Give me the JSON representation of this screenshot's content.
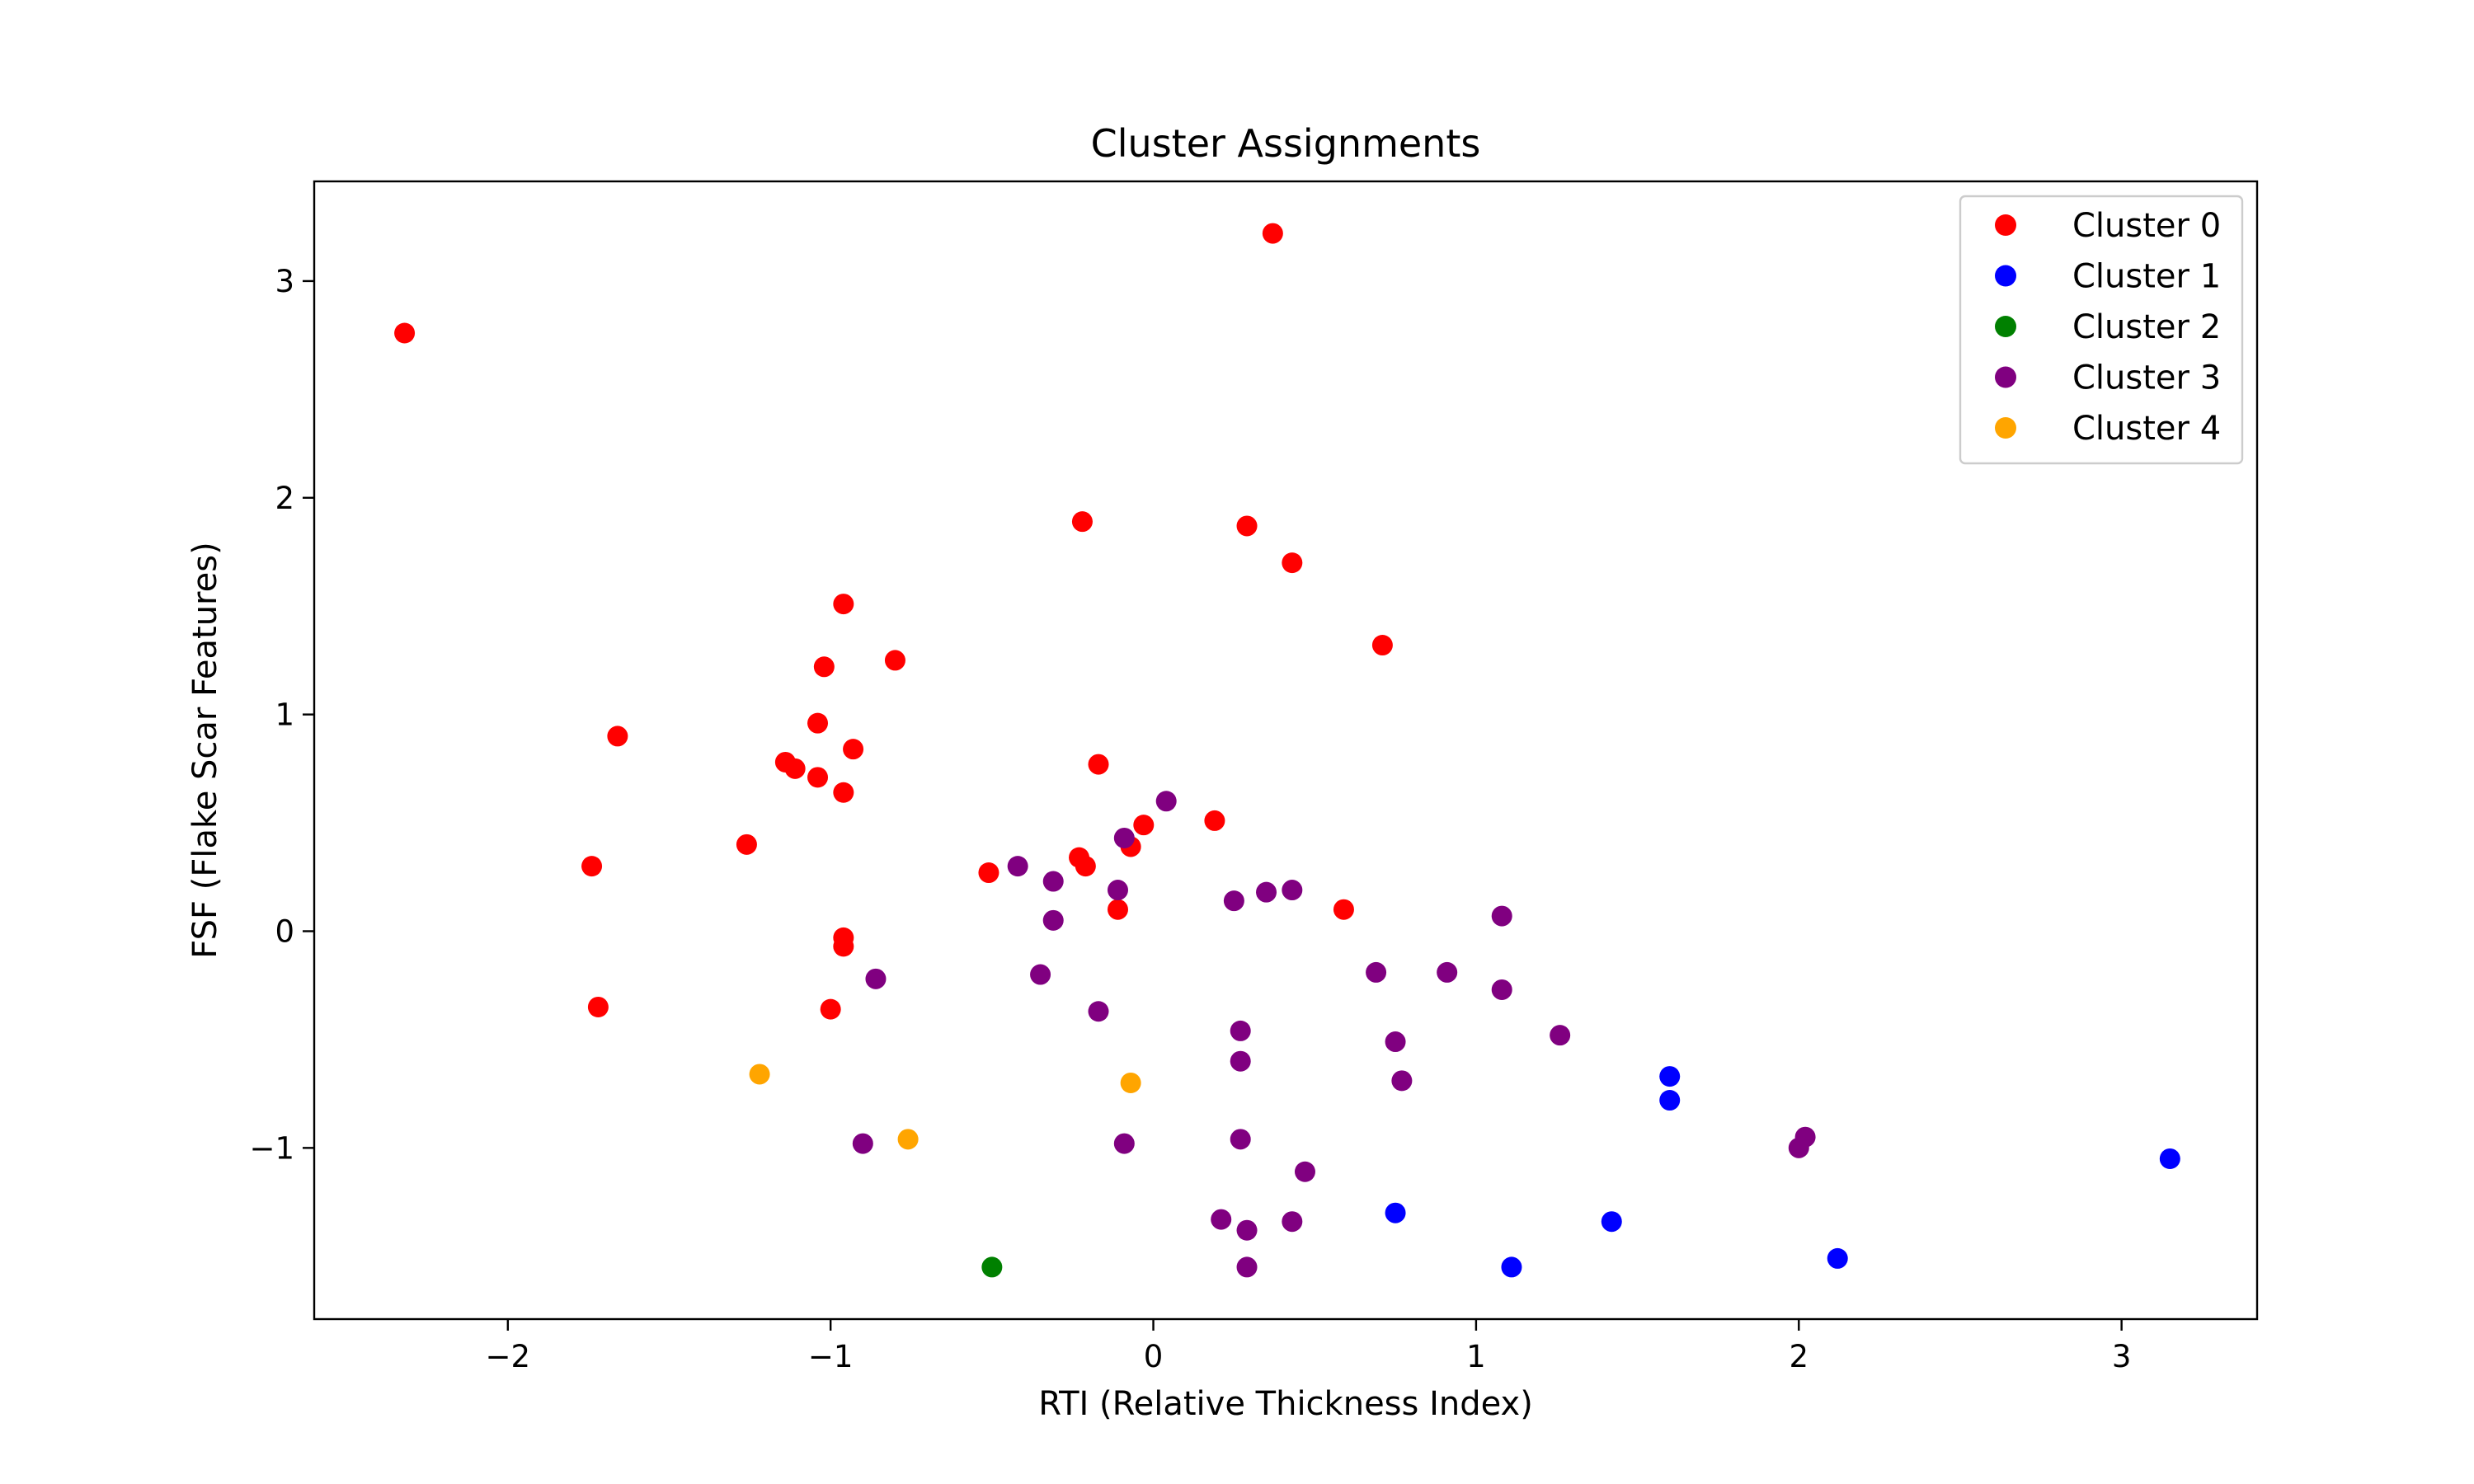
{
  "chart_data": {
    "type": "scatter",
    "title": "Cluster Assignments",
    "xlabel": "RTI (Relative Thickness Index)",
    "ylabel": "FSF (Flake Scar Features)",
    "xlim": [
      -2.6,
      3.42
    ],
    "ylim": [
      -1.79,
      3.46
    ],
    "xticks": [
      -2,
      -1,
      0,
      1,
      2,
      3
    ],
    "xtick_labels": [
      "−2",
      "−1",
      "0",
      "1",
      "2",
      "3"
    ],
    "yticks": [
      -1,
      0,
      1,
      2,
      3
    ],
    "ytick_labels": [
      "−1",
      "0",
      "1",
      "2",
      "3"
    ],
    "grid": false,
    "legend_position": "top-right",
    "series": [
      {
        "name": "Cluster 0",
        "color": "#ff0000",
        "points": [
          [
            -2.32,
            2.76
          ],
          [
            0.37,
            3.22
          ],
          [
            -0.22,
            1.89
          ],
          [
            0.29,
            1.87
          ],
          [
            0.43,
            1.7
          ],
          [
            -0.96,
            1.51
          ],
          [
            -0.8,
            1.25
          ],
          [
            0.71,
            1.32
          ],
          [
            -1.02,
            1.22
          ],
          [
            -1.04,
            0.96
          ],
          [
            -1.66,
            0.9
          ],
          [
            -0.93,
            0.84
          ],
          [
            -1.14,
            0.78
          ],
          [
            -1.11,
            0.75
          ],
          [
            -1.04,
            0.71
          ],
          [
            -0.96,
            0.64
          ],
          [
            -0.17,
            0.77
          ],
          [
            -1.26,
            0.4
          ],
          [
            -1.74,
            0.3
          ],
          [
            -0.03,
            0.49
          ],
          [
            0.19,
            0.51
          ],
          [
            -0.23,
            0.34
          ],
          [
            -0.21,
            0.3
          ],
          [
            -0.07,
            0.39
          ],
          [
            -0.51,
            0.27
          ],
          [
            -0.11,
            0.1
          ],
          [
            0.59,
            0.1
          ],
          [
            -0.96,
            -0.03
          ],
          [
            -0.96,
            -0.07
          ],
          [
            -1.72,
            -0.35
          ],
          [
            -1.0,
            -0.36
          ]
        ]
      },
      {
        "name": "Cluster 1",
        "color": "#0000ff",
        "points": [
          [
            1.6,
            -0.67
          ],
          [
            1.6,
            -0.78
          ],
          [
            3.15,
            -1.05
          ],
          [
            0.75,
            -1.3
          ],
          [
            1.42,
            -1.34
          ],
          [
            2.12,
            -1.51
          ],
          [
            1.11,
            -1.55
          ]
        ]
      },
      {
        "name": "Cluster 2",
        "color": "#008000",
        "points": [
          [
            -0.5,
            -1.55
          ]
        ]
      },
      {
        "name": "Cluster 3",
        "color": "#800080",
        "points": [
          [
            0.04,
            0.6
          ],
          [
            -0.09,
            0.43
          ],
          [
            -0.42,
            0.3
          ],
          [
            -0.31,
            0.23
          ],
          [
            -0.11,
            0.19
          ],
          [
            0.25,
            0.14
          ],
          [
            0.35,
            0.18
          ],
          [
            0.43,
            0.19
          ],
          [
            1.08,
            0.07
          ],
          [
            -0.31,
            0.05
          ],
          [
            -0.86,
            -0.22
          ],
          [
            -0.35,
            -0.2
          ],
          [
            0.69,
            -0.19
          ],
          [
            0.91,
            -0.19
          ],
          [
            1.08,
            -0.27
          ],
          [
            -0.17,
            -0.37
          ],
          [
            0.27,
            -0.46
          ],
          [
            1.26,
            -0.48
          ],
          [
            0.75,
            -0.51
          ],
          [
            0.27,
            -0.6
          ],
          [
            0.77,
            -0.69
          ],
          [
            2.02,
            -0.95
          ],
          [
            2.0,
            -1.0
          ],
          [
            -0.9,
            -0.98
          ],
          [
            -0.09,
            -0.98
          ],
          [
            0.27,
            -0.96
          ],
          [
            0.47,
            -1.11
          ],
          [
            0.21,
            -1.33
          ],
          [
            0.43,
            -1.34
          ],
          [
            0.29,
            -1.38
          ],
          [
            0.29,
            -1.55
          ]
        ]
      },
      {
        "name": "Cluster 4",
        "color": "#ffa500",
        "points": [
          [
            -1.22,
            -0.66
          ],
          [
            -0.76,
            -0.96
          ],
          [
            -0.07,
            -0.7
          ]
        ]
      }
    ]
  }
}
